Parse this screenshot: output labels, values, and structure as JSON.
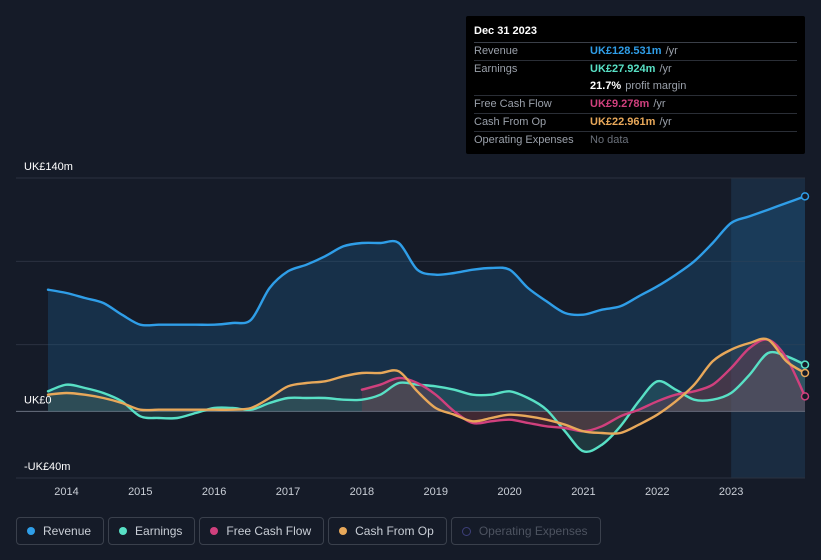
{
  "tooltip": {
    "date": "Dec 31 2023",
    "rows": {
      "revenue": {
        "label": "Revenue",
        "value": "UK£128.531m",
        "unit": "/yr",
        "color": "#2f9ee8"
      },
      "earnings": {
        "label": "Earnings",
        "value": "UK£27.924m",
        "unit": "/yr",
        "color": "#58e0c5"
      },
      "margin": {
        "value": "21.7%",
        "text": "profit margin"
      },
      "fcf": {
        "label": "Free Cash Flow",
        "value": "UK£9.278m",
        "unit": "/yr",
        "color": "#d0407d"
      },
      "cfo": {
        "label": "Cash From Op",
        "value": "UK£22.961m",
        "unit": "/yr",
        "color": "#e8a85a"
      },
      "opex": {
        "label": "Operating Expenses",
        "value": "No data"
      }
    }
  },
  "legend": [
    {
      "label": "Revenue",
      "color": "#2f9ee8"
    },
    {
      "label": "Earnings",
      "color": "#58e0c5"
    },
    {
      "label": "Free Cash Flow",
      "color": "#d0407d"
    },
    {
      "label": "Cash From Op",
      "color": "#e8a85a"
    },
    {
      "label": "Operating Expenses",
      "color": "#3d3f7a"
    }
  ],
  "chart_data": {
    "type": "area",
    "title": "",
    "y_tick_labels": [
      "UK£140m",
      "UK£0",
      "-UK£40m"
    ],
    "y_ticks": [
      140,
      0,
      -40
    ],
    "ylim": [
      -40,
      140
    ],
    "xlim": [
      2013.75,
      2024.0
    ],
    "x_ticks": [
      2014,
      2015,
      2016,
      2017,
      2018,
      2019,
      2020,
      2021,
      2022,
      2023
    ],
    "x_tick_labels": [
      "2014",
      "2015",
      "2016",
      "2017",
      "2018",
      "2019",
      "2020",
      "2021",
      "2022",
      "2023"
    ],
    "highlight_from": 2023.0,
    "series": [
      {
        "name": "Revenue",
        "color": "#2f9ee8",
        "x": [
          2013.75,
          2014.0,
          2014.25,
          2014.5,
          2014.75,
          2015.0,
          2015.25,
          2015.5,
          2015.75,
          2016.0,
          2016.25,
          2016.5,
          2016.75,
          2017.0,
          2017.25,
          2017.5,
          2017.75,
          2018.0,
          2018.25,
          2018.5,
          2018.75,
          2019.0,
          2019.25,
          2019.5,
          2019.75,
          2020.0,
          2020.25,
          2020.5,
          2020.75,
          2021.0,
          2021.25,
          2021.5,
          2021.75,
          2022.0,
          2022.25,
          2022.5,
          2022.75,
          2023.0,
          2023.25,
          2023.5,
          2023.75,
          2024.0
        ],
        "values": [
          73,
          71,
          68,
          65,
          58,
          52,
          52,
          52,
          52,
          52,
          53,
          55,
          74,
          84,
          88,
          93,
          99,
          101,
          101,
          101,
          85,
          82,
          83,
          85,
          86,
          85,
          74,
          66,
          59,
          58,
          61,
          63,
          69,
          75,
          82,
          90,
          101,
          113,
          117,
          121,
          125,
          129
        ]
      },
      {
        "name": "Earnings",
        "color": "#58e0c5",
        "x": [
          2013.75,
          2014.0,
          2014.25,
          2014.5,
          2014.75,
          2015.0,
          2015.25,
          2015.5,
          2015.75,
          2016.0,
          2016.25,
          2016.5,
          2016.75,
          2017.0,
          2017.25,
          2017.5,
          2017.75,
          2018.0,
          2018.25,
          2018.5,
          2018.75,
          2019.0,
          2019.25,
          2019.5,
          2019.75,
          2020.0,
          2020.25,
          2020.5,
          2020.75,
          2021.0,
          2021.25,
          2021.5,
          2021.75,
          2022.0,
          2022.25,
          2022.5,
          2022.75,
          2023.0,
          2023.25,
          2023.5,
          2023.75,
          2024.0
        ],
        "values": [
          12,
          16,
          14,
          11,
          6,
          -3,
          -4,
          -4,
          -1,
          2,
          2,
          1,
          5,
          8,
          8,
          8,
          7,
          7,
          10,
          17,
          16,
          15,
          13,
          10,
          10,
          12,
          8,
          1,
          -12,
          -24,
          -20,
          -9,
          6,
          18,
          13,
          7,
          7,
          11,
          22,
          35,
          33,
          28
        ]
      },
      {
        "name": "Free Cash Flow",
        "color": "#d0407d",
        "x": [
          2018.0,
          2018.25,
          2018.5,
          2018.75,
          2019.0,
          2019.25,
          2019.5,
          2019.75,
          2020.0,
          2020.25,
          2020.5,
          2020.75,
          2021.0,
          2021.25,
          2021.5,
          2021.75,
          2022.0,
          2022.25,
          2022.5,
          2022.75,
          2023.0,
          2023.25,
          2023.5,
          2023.75,
          2024.0
        ],
        "values": [
          13,
          16,
          20,
          17,
          10,
          0,
          -7,
          -6,
          -5,
          -7,
          -9,
          -10,
          -12,
          -9,
          -3,
          1,
          6,
          10,
          12,
          16,
          26,
          38,
          43,
          32,
          9
        ]
      },
      {
        "name": "Cash From Op",
        "color": "#e8a85a",
        "x": [
          2013.75,
          2014.0,
          2014.25,
          2014.5,
          2014.75,
          2015.0,
          2015.25,
          2015.5,
          2015.75,
          2016.0,
          2016.25,
          2016.5,
          2016.75,
          2017.0,
          2017.25,
          2017.5,
          2017.75,
          2018.0,
          2018.25,
          2018.5,
          2018.75,
          2019.0,
          2019.25,
          2019.5,
          2019.75,
          2020.0,
          2020.25,
          2020.5,
          2020.75,
          2021.0,
          2021.25,
          2021.5,
          2021.75,
          2022.0,
          2022.25,
          2022.5,
          2022.75,
          2023.0,
          2023.25,
          2023.5,
          2023.75,
          2024.0
        ],
        "values": [
          10,
          11,
          10,
          8,
          5,
          1,
          1,
          1,
          1,
          1,
          1,
          2,
          8,
          15,
          17,
          18,
          21,
          23,
          23,
          24,
          12,
          2,
          -2,
          -6,
          -4,
          -2,
          -3,
          -5,
          -8,
          -12,
          -13,
          -13,
          -8,
          -2,
          6,
          16,
          30,
          37,
          41,
          43,
          30,
          23
        ]
      }
    ]
  }
}
